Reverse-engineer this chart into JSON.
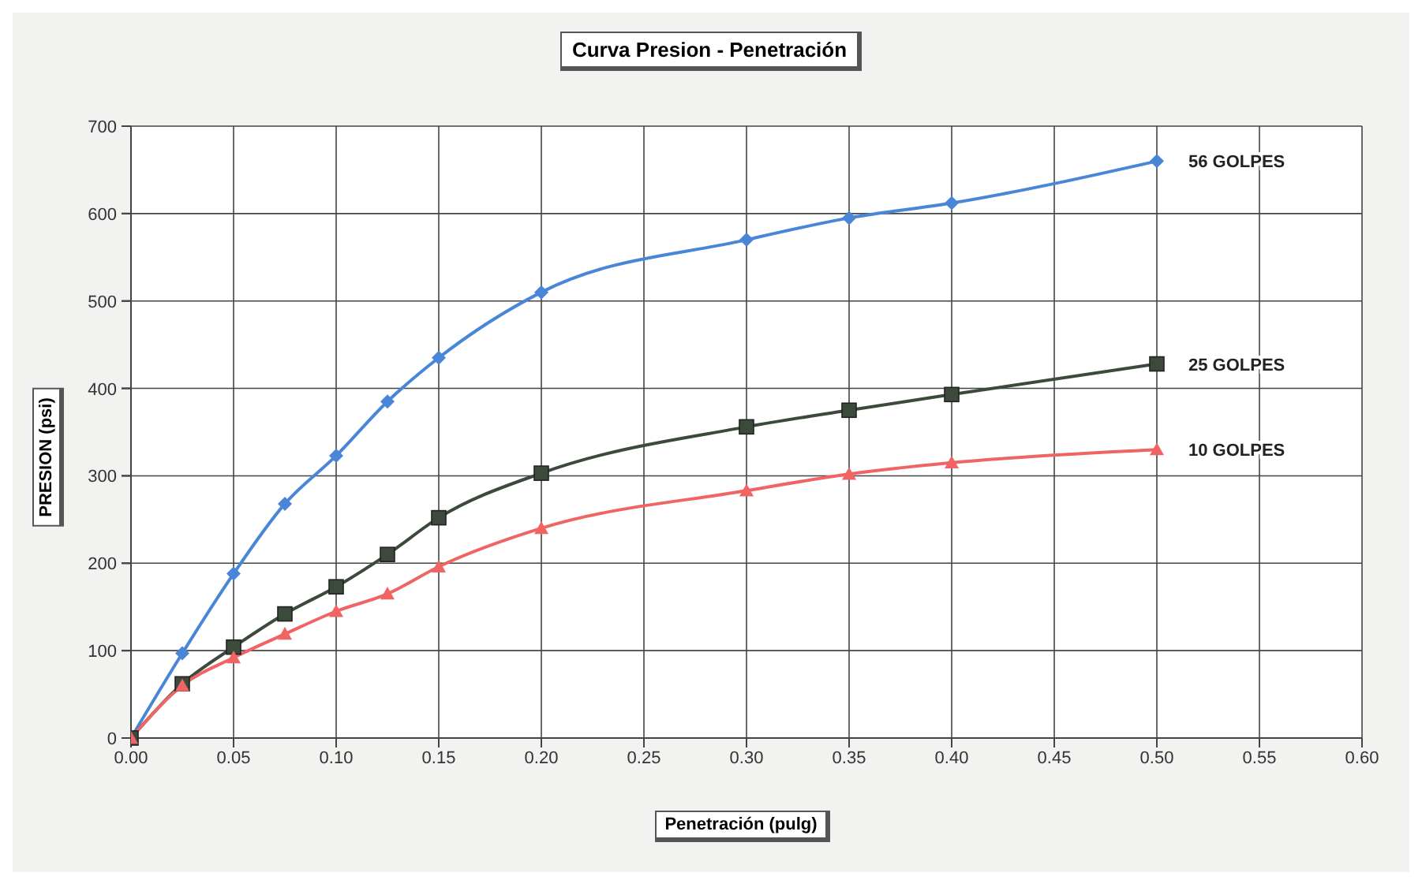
{
  "chart_data": {
    "type": "line",
    "title": "Curva Presion - Penetración",
    "xlabel": "Penetración (pulg)",
    "ylabel": "PRESION (psi)",
    "x": [
      0,
      0.025,
      0.05,
      0.075,
      0.1,
      0.125,
      0.15,
      0.2,
      0.3,
      0.35,
      0.4,
      0.5
    ],
    "series": [
      {
        "name": "56 GOLPES",
        "color": "#4a86d8",
        "marker": "diamond",
        "values": [
          0,
          97,
          188,
          268,
          323,
          385,
          435,
          510,
          570,
          595,
          612,
          660
        ]
      },
      {
        "name": "25 GOLPES",
        "color": "#3c4a3c",
        "marker": "square",
        "values": [
          0,
          62,
          104,
          142,
          173,
          210,
          252,
          303,
          356,
          375,
          393,
          428
        ]
      },
      {
        "name": "10 GOLPES",
        "color": "#f06464",
        "marker": "triangle",
        "values": [
          0,
          60,
          92,
          119,
          145,
          165,
          196,
          240,
          283,
          302,
          315,
          330
        ]
      }
    ],
    "xlim": [
      0,
      0.6
    ],
    "xticks": [
      {
        "value": 0,
        "label": "0.00"
      },
      {
        "value": 0.05,
        "label": "0.05"
      },
      {
        "value": 0.1,
        "label": "0.10"
      },
      {
        "value": 0.15,
        "label": "0.15"
      },
      {
        "value": 0.2,
        "label": "0.20"
      },
      {
        "value": 0.25,
        "label": "0.25"
      },
      {
        "value": 0.3,
        "label": "0.30"
      },
      {
        "value": 0.35,
        "label": "0.35"
      },
      {
        "value": 0.4,
        "label": "0.40"
      },
      {
        "value": 0.45,
        "label": "0.45"
      },
      {
        "value": 0.5,
        "label": "0.50"
      },
      {
        "value": 0.55,
        "label": "0.55"
      },
      {
        "value": 0.6,
        "label": "0.60"
      }
    ],
    "ylim": [
      0,
      700
    ],
    "yticks": [
      0,
      100,
      200,
      300,
      400,
      500,
      600,
      700
    ],
    "grid": true,
    "line_style": "solid"
  }
}
